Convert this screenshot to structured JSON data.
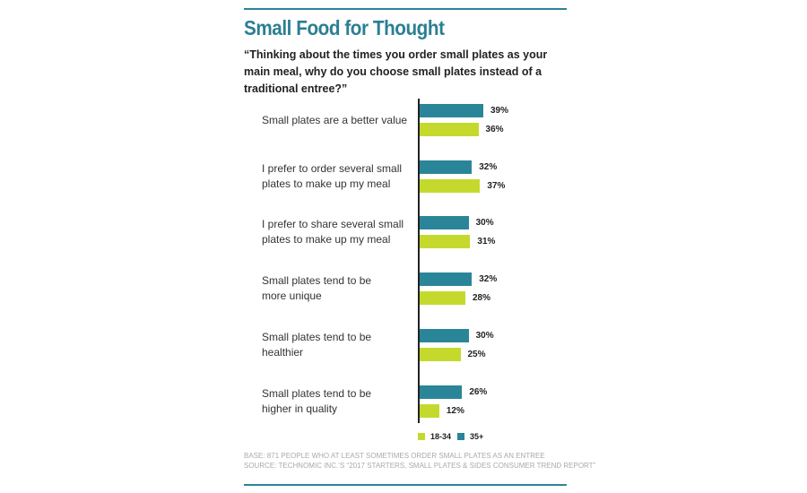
{
  "chart_data": {
    "type": "bar",
    "orientation": "horizontal",
    "title": "Small Food for Thought",
    "subtitle": "“Thinking about the times you order small plates as your main meal, why do you choose small plates instead of a traditional entree?”",
    "categories": [
      "Small plates are a better value",
      "I prefer to order several small\nplates to make up my meal",
      "I prefer to share several small\nplates to make up my meal",
      "Small plates tend to be\nmore unique",
      "Small plates tend to be\nhealthier",
      "Small plates tend to be\nhigher in quality"
    ],
    "series": [
      {
        "name": "35+",
        "color": "#2b8599",
        "values": [
          39,
          32,
          30,
          32,
          30,
          26
        ],
        "value_labels": [
          "39%",
          "32%",
          "30%",
          "32%",
          "30%",
          "26%"
        ]
      },
      {
        "name": "18-34",
        "color": "#c5d92d",
        "values": [
          36,
          37,
          31,
          28,
          25,
          12
        ],
        "value_labels": [
          "36%",
          "37%",
          "31%",
          "28%",
          "25%",
          "12%"
        ]
      }
    ],
    "legend_order": [
      1,
      0
    ],
    "xlim": [
      0,
      100
    ],
    "notes": [
      "BASE: 871 PEOPLE WHO AT LEAST SOMETIMES ORDER SMALL PLATES AS AN ENTREE",
      "SOURCE: TECHNOMIC INC.’S “2017 STARTERS, SMALL PLATES & SIDES CONSUMER TREND REPORT”"
    ]
  }
}
